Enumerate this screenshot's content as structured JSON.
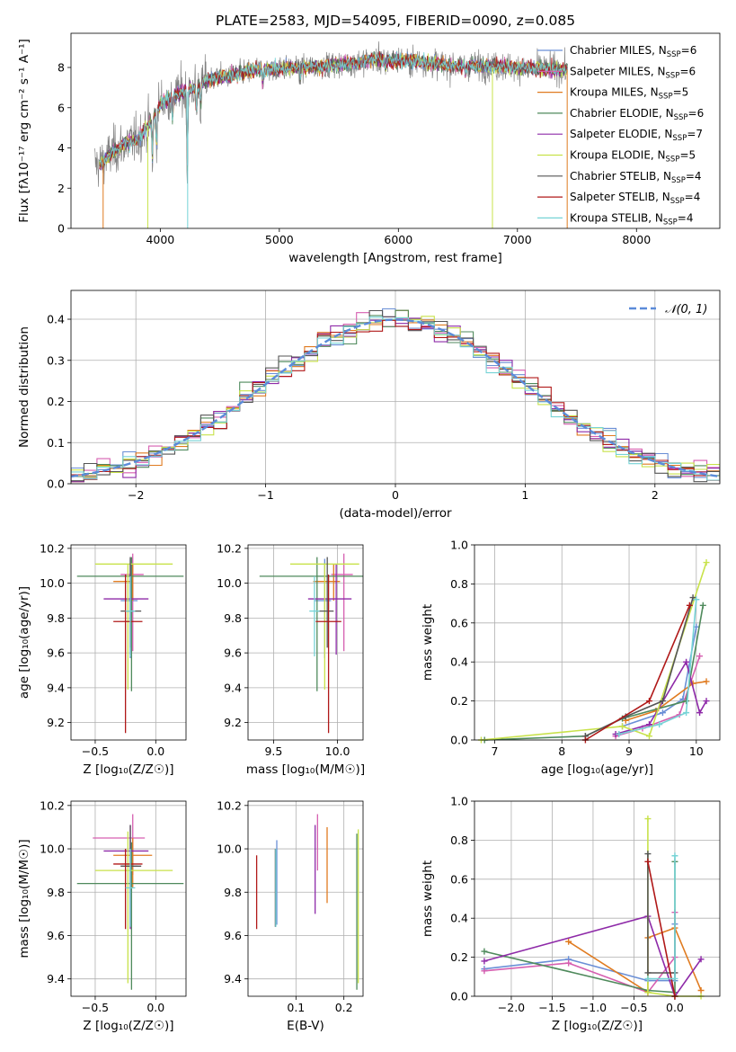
{
  "figure_title": "PLATE=2583, MJD=54095, FIBERID=0090, z=0.085",
  "colors": {
    "chabrier_miles": "#6a8fd6",
    "salpeter_miles": "#d65fb0",
    "kroupa_miles": "#e07b20",
    "chabrier_elodie": "#4f8a5c",
    "salpeter_elodie": "#8e2aa8",
    "kroupa_elodie": "#c8e24a",
    "chabrier_stelib": "#555555",
    "salpeter_stelib": "#b01818",
    "kroupa_stelib": "#76d3d6",
    "gaussian": "#5b8bd9"
  },
  "chart_data": [
    {
      "id": "spectrum",
      "type": "line",
      "xlabel": "wavelength [Angstrom, rest frame]",
      "ylabel": "Flux [fλ10⁻¹⁷ erg cm⁻² s⁻¹ A⁻¹]",
      "xlim": [
        3250,
        8700
      ],
      "ylim": [
        0,
        9.7
      ],
      "xticks": [
        "4000",
        "5000",
        "6000",
        "7000",
        "8000"
      ],
      "yticks": [
        "0",
        "2",
        "4",
        "6",
        "8"
      ],
      "legend_position": "right",
      "legend": [
        {
          "label": "Chabrier MILES, N",
          "sub": "SSP",
          "tail": "=6",
          "color": "#6a8fd6"
        },
        {
          "label": "Salpeter MILES, N",
          "sub": "SSP",
          "tail": "=6",
          "color": "#d65fb0"
        },
        {
          "label": "Kroupa MILES, N",
          "sub": "SSP",
          "tail": "=5",
          "color": "#e07b20"
        },
        {
          "label": "Chabrier ELODIE, N",
          "sub": "SSP",
          "tail": "=6",
          "color": "#4f8a5c"
        },
        {
          "label": "Salpeter ELODIE, N",
          "sub": "SSP",
          "tail": "=7",
          "color": "#8e2aa8"
        },
        {
          "label": "Kroupa ELODIE, N",
          "sub": "SSP",
          "tail": "=5",
          "color": "#c8e24a"
        },
        {
          "label": "Chabrier STELIB, N",
          "sub": "SSP",
          "tail": "=4",
          "color": "#555555"
        },
        {
          "label": "Salpeter STELIB, N",
          "sub": "SSP",
          "tail": "=4",
          "color": "#b01818"
        },
        {
          "label": "Kroupa STELIB, N",
          "sub": "SSP",
          "tail": "=4",
          "color": "#76d3d6"
        }
      ],
      "continuum": {
        "x": [
          3500,
          3600,
          3700,
          3800,
          3900,
          4000,
          4100,
          4200,
          4300,
          4400,
          4600,
          4800,
          5000,
          5200,
          5400,
          5600,
          5800,
          6000,
          6200,
          6400,
          6600,
          6800,
          7000,
          7200,
          7400
        ],
        "y": [
          3.2,
          3.8,
          4.2,
          4.4,
          5.1,
          6.2,
          6.6,
          6.8,
          7.0,
          7.4,
          7.6,
          7.9,
          7.95,
          8.0,
          8.1,
          8.2,
          8.4,
          8.35,
          8.3,
          8.1,
          8.1,
          8.05,
          8.0,
          7.95,
          7.9
        ]
      },
      "data_range": [
        3450,
        7420
      ],
      "model_range": [
        3490,
        7420
      ]
    },
    {
      "id": "residual_hist",
      "type": "line",
      "xlabel": "(data-model)/error",
      "ylabel": "Normed distribution",
      "xlim": [
        -2.5,
        2.5
      ],
      "ylim": [
        0,
        0.47
      ],
      "xticks": [
        "−2",
        "−1",
        "0",
        "1",
        "2"
      ],
      "yticks": [
        "0.0",
        "0.1",
        "0.2",
        "0.3",
        "0.4"
      ],
      "legend_label": "𝒩(0, 1)",
      "legend_position": "top-right",
      "bin_width": 0.1
    },
    {
      "id": "age_vs_Z",
      "type": "scatter",
      "xlabel": "Z [log₁₀(Z/Z☉)]",
      "ylabel": "age  [log₁₀(age/yr)]",
      "xlim": [
        -0.7,
        0.25
      ],
      "ylim": [
        9.1,
        10.22
      ],
      "xticks": [
        "−0.5",
        "0.0"
      ],
      "yticks": [
        "9.2",
        "9.4",
        "9.6",
        "9.8",
        "10.0",
        "10.2"
      ],
      "points": [
        {
          "x": -0.21,
          "y": 9.9,
          "xerr": [
            0.08,
            0.06
          ],
          "yerr": [
            0.33,
            0.24
          ],
          "color": "#6a8fd6"
        },
        {
          "x": -0.19,
          "y": 10.05,
          "xerr": [
            0.1,
            0.09
          ],
          "yerr": [
            0.44,
            0.12
          ],
          "color": "#d65fb0"
        },
        {
          "x": -0.19,
          "y": 10.01,
          "xerr": [
            0.16,
            0.0
          ],
          "yerr": [
            0.11,
            0.1
          ],
          "color": "#e07b20"
        },
        {
          "x": -0.2,
          "y": 10.04,
          "xerr": [
            0.45,
            0.43
          ],
          "yerr": [
            0.66,
            0.11
          ],
          "color": "#4f8a5c"
        },
        {
          "x": -0.21,
          "y": 9.91,
          "xerr": [
            0.22,
            0.15
          ],
          "yerr": [
            0.32,
            0.2
          ],
          "color": "#8e2aa8"
        },
        {
          "x": -0.23,
          "y": 10.11,
          "xerr": [
            0.27,
            0.37
          ],
          "yerr": [
            0.72,
            0.0
          ],
          "color": "#c8e24a"
        },
        {
          "x": -0.21,
          "y": 9.84,
          "xerr": [
            0.08,
            0.09
          ],
          "yerr": [
            0.21,
            0.31
          ],
          "color": "#555555"
        },
        {
          "x": -0.25,
          "y": 9.78,
          "xerr": [
            0.1,
            0.14
          ],
          "yerr": [
            0.64,
            0.27
          ],
          "color": "#b01818"
        },
        {
          "x": -0.21,
          "y": 9.84,
          "xerr": [
            0.04,
            0.04
          ],
          "yerr": [
            0.26,
            0.2
          ],
          "color": "#76d3d6"
        }
      ]
    },
    {
      "id": "age_vs_mass",
      "type": "scatter",
      "xlabel": "mass [log₁₀(M/M☉)]",
      "ylabel": "",
      "xlim": [
        9.3,
        10.2
      ],
      "ylim": [
        9.1,
        10.22
      ],
      "xticks": [
        "9.5",
        "10.0"
      ],
      "yticks": [
        "9.2",
        "9.4",
        "9.6",
        "9.8",
        "10.0",
        "10.2"
      ],
      "points": [
        {
          "x": 9.9,
          "y": 9.9,
          "xerr": [
            0.08,
            0.05
          ],
          "yerr": [
            0.33,
            0.24
          ],
          "color": "#6a8fd6"
        },
        {
          "x": 10.05,
          "y": 10.05,
          "xerr": [
            0.1,
            0.07
          ],
          "yerr": [
            0.44,
            0.12
          ],
          "color": "#d65fb0"
        },
        {
          "x": 9.97,
          "y": 10.01,
          "xerr": [
            0.16,
            0.05
          ],
          "yerr": [
            0.11,
            0.1
          ],
          "color": "#e07b20"
        },
        {
          "x": 9.84,
          "y": 10.04,
          "xerr": [
            0.45,
            0.42
          ],
          "yerr": [
            0.66,
            0.11
          ],
          "color": "#4f8a5c"
        },
        {
          "x": 9.99,
          "y": 9.91,
          "xerr": [
            0.22,
            0.12
          ],
          "yerr": [
            0.32,
            0.2
          ],
          "color": "#8e2aa8"
        },
        {
          "x": 9.9,
          "y": 10.11,
          "xerr": [
            0.27,
            0.27
          ],
          "yerr": [
            0.72,
            0.0
          ],
          "color": "#c8e24a"
        },
        {
          "x": 9.92,
          "y": 9.84,
          "xerr": [
            0.08,
            0.05
          ],
          "yerr": [
            0.21,
            0.31
          ],
          "color": "#555555"
        },
        {
          "x": 9.93,
          "y": 9.78,
          "xerr": [
            0.1,
            0.1
          ],
          "yerr": [
            0.64,
            0.27
          ],
          "color": "#b01818"
        },
        {
          "x": 9.82,
          "y": 9.84,
          "xerr": [
            0.04,
            0.04
          ],
          "yerr": [
            0.26,
            0.2
          ],
          "color": "#76d3d6"
        }
      ]
    },
    {
      "id": "weight_vs_age",
      "type": "line",
      "xlabel": "age  [log₁₀(age/yr)]",
      "ylabel": "mass weight",
      "xlim": [
        6.7,
        10.35
      ],
      "ylim": [
        0,
        1.0
      ],
      "xticks": [
        "7",
        "8",
        "9",
        "10"
      ],
      "yticks": [
        "0.0",
        "0.2",
        "0.4",
        "0.6",
        "0.8",
        "1.0"
      ],
      "series": [
        {
          "color": "#6a8fd6",
          "x": [
            8.9,
            9.5,
            9.8,
            10.0
          ],
          "y": [
            0.07,
            0.14,
            0.21,
            0.58
          ]
        },
        {
          "color": "#d65fb0",
          "x": [
            8.8,
            9.2,
            9.75,
            10.05
          ],
          "y": [
            0.02,
            0.06,
            0.13,
            0.43
          ]
        },
        {
          "color": "#e07b20",
          "x": [
            8.95,
            9.4,
            9.95,
            10.15
          ],
          "y": [
            0.1,
            0.15,
            0.29,
            0.3
          ]
        },
        {
          "color": "#4f8a5c",
          "x": [
            6.85,
            8.35,
            8.9,
            9.85,
            10.1
          ],
          "y": [
            0.0,
            0.02,
            0.11,
            0.2,
            0.69
          ]
        },
        {
          "color": "#8e2aa8",
          "x": [
            8.8,
            9.3,
            9.85,
            10.05,
            10.15
          ],
          "y": [
            0.03,
            0.08,
            0.4,
            0.14,
            0.2
          ]
        },
        {
          "color": "#c8e24a",
          "x": [
            6.8,
            8.9,
            9.3,
            10.15
          ],
          "y": [
            0.0,
            0.07,
            0.02,
            0.91
          ]
        },
        {
          "color": "#555555",
          "x": [
            8.35,
            8.95,
            9.5,
            9.95
          ],
          "y": [
            0.02,
            0.12,
            0.2,
            0.73
          ]
        },
        {
          "color": "#b01818",
          "x": [
            8.35,
            9.3,
            9.9
          ],
          "y": [
            0.0,
            0.2,
            0.69
          ]
        },
        {
          "color": "#76d3d6",
          "x": [
            8.85,
            9.45,
            9.85,
            10.0
          ],
          "y": [
            0.03,
            0.08,
            0.14,
            0.72
          ]
        }
      ]
    },
    {
      "id": "mass_vs_Z",
      "type": "scatter",
      "xlabel": "Z [log₁₀(Z/Z☉)]",
      "ylabel": "mass [log₁₀(M/M☉)]",
      "xlim": [
        -0.7,
        0.25
      ],
      "ylim": [
        9.32,
        10.22
      ],
      "xticks": [
        "−0.5",
        "0.0"
      ],
      "yticks": [
        "9.4",
        "9.6",
        "9.8",
        "10.0",
        "10.2"
      ],
      "points": [
        {
          "x": -0.21,
          "y": 9.92,
          "xerr": [
            0.08,
            0.06
          ],
          "yerr": [
            0.28,
            0.12
          ],
          "color": "#6a8fd6"
        },
        {
          "x": -0.19,
          "y": 10.05,
          "xerr": [
            0.33,
            0.1
          ],
          "yerr": [
            0.17,
            0.11
          ],
          "color": "#d65fb0"
        },
        {
          "x": -0.19,
          "y": 9.97,
          "xerr": [
            0.16,
            0.16
          ],
          "yerr": [
            0.15,
            0.08
          ],
          "color": "#e07b20"
        },
        {
          "x": -0.2,
          "y": 9.84,
          "xerr": [
            0.45,
            0.43
          ],
          "yerr": [
            0.49,
            0.19
          ],
          "color": "#4f8a5c"
        },
        {
          "x": -0.21,
          "y": 9.99,
          "xerr": [
            0.22,
            0.15
          ],
          "yerr": [
            0.36,
            0.12
          ],
          "color": "#8e2aa8"
        },
        {
          "x": -0.23,
          "y": 9.9,
          "xerr": [
            0.27,
            0.37
          ],
          "yerr": [
            0.52,
            0.18
          ],
          "color": "#c8e24a"
        },
        {
          "x": -0.21,
          "y": 9.92,
          "xerr": [
            0.08,
            0.09
          ],
          "yerr": [
            0.28,
            0.19
          ],
          "color": "#555555"
        },
        {
          "x": -0.25,
          "y": 9.93,
          "xerr": [
            0.1,
            0.14
          ],
          "yerr": [
            0.3,
            0.07
          ],
          "color": "#b01818"
        },
        {
          "x": -0.21,
          "y": 9.82,
          "xerr": [
            0.04,
            0.04
          ],
          "yerr": [
            0.18,
            0.18
          ],
          "color": "#76d3d6"
        }
      ]
    },
    {
      "id": "mass_vs_ebv",
      "type": "scatter",
      "xlabel": "E(B-V)",
      "ylabel": "",
      "xlim": [
        0.0,
        0.24
      ],
      "ylim": [
        9.32,
        10.22
      ],
      "xticks": [
        "0.1",
        "0.2"
      ],
      "yticks": [
        "9.4",
        "9.6",
        "9.8",
        "10.0",
        "10.2"
      ],
      "points": [
        {
          "x": 0.06,
          "y": 9.9,
          "ymin": 9.65,
          "ymax": 10.04,
          "color": "#6a8fd6"
        },
        {
          "x": 0.145,
          "y": 10.05,
          "ymin": 9.9,
          "ymax": 10.16,
          "color": "#d65fb0"
        },
        {
          "x": 0.165,
          "y": 9.97,
          "ymin": 9.75,
          "ymax": 10.1,
          "color": "#e07b20"
        },
        {
          "x": 0.227,
          "y": 9.84,
          "ymin": 9.35,
          "ymax": 10.07,
          "color": "#4f8a5c"
        },
        {
          "x": 0.14,
          "y": 9.99,
          "ymin": 9.7,
          "ymax": 10.11,
          "color": "#8e2aa8"
        },
        {
          "x": 0.23,
          "y": 9.9,
          "ymin": 9.38,
          "ymax": 10.09,
          "color": "#c8e24a"
        },
        {
          "x": 0.057,
          "y": 9.92,
          "ymin": 9.64,
          "ymax": 10.0,
          "color": "#555555"
        },
        {
          "x": 0.018,
          "y": 9.93,
          "ymin": 9.63,
          "ymax": 9.97,
          "color": "#b01818"
        },
        {
          "x": 0.058,
          "y": 9.82,
          "ymin": 9.64,
          "ymax": 10.0,
          "color": "#76d3d6"
        }
      ]
    },
    {
      "id": "weight_vs_Z",
      "type": "line",
      "xlabel": "Z [log₁₀(Z/Z☉)]",
      "ylabel": "mass weight",
      "xlim": [
        -2.45,
        0.55
      ],
      "ylim": [
        0,
        1.0
      ],
      "xticks": [
        "−2.0",
        "−1.5",
        "−1.0",
        "−0.5",
        "0.0"
      ],
      "yticks": [
        "0.0",
        "0.2",
        "0.4",
        "0.6",
        "0.8",
        "1.0"
      ],
      "series": [
        {
          "color": "#6a8fd6",
          "x": [
            -2.33,
            -1.3,
            -0.33,
            0.0,
            0.0
          ],
          "y": [
            0.14,
            0.19,
            0.08,
            0.08,
            0.37
          ]
        },
        {
          "color": "#d65fb0",
          "x": [
            -2.33,
            -1.3,
            -0.33,
            0.0,
            0.0
          ],
          "y": [
            0.13,
            0.17,
            0.02,
            0.2,
            0.43
          ]
        },
        {
          "color": "#e07b20",
          "x": [
            -1.3,
            -0.33,
            -0.33,
            0.0,
            0.32
          ],
          "y": [
            0.28,
            0.02,
            0.3,
            0.35,
            0.03
          ]
        },
        {
          "color": "#4f8a5c",
          "x": [
            -2.33,
            -0.33,
            0.0,
            0.0
          ],
          "y": [
            0.23,
            0.03,
            0.02,
            0.69
          ]
        },
        {
          "color": "#8e2aa8",
          "x": [
            -2.33,
            -0.33,
            0.0,
            0.32
          ],
          "y": [
            0.18,
            0.41,
            0.0,
            0.19
          ]
        },
        {
          "color": "#c8e24a",
          "x": [
            -0.33,
            -0.33,
            0.0,
            0.32
          ],
          "y": [
            0.91,
            0.02,
            0.0,
            0.0
          ]
        },
        {
          "color": "#555555",
          "x": [
            -0.33,
            -0.33,
            0.0
          ],
          "y": [
            0.73,
            0.12,
            0.12
          ]
        },
        {
          "color": "#b01818",
          "x": [
            -0.33,
            0.0
          ],
          "y": [
            0.69,
            0.0
          ]
        },
        {
          "color": "#76d3d6",
          "x": [
            -0.33,
            0.0,
            0.0
          ],
          "y": [
            0.09,
            0.09,
            0.72
          ]
        }
      ]
    }
  ]
}
